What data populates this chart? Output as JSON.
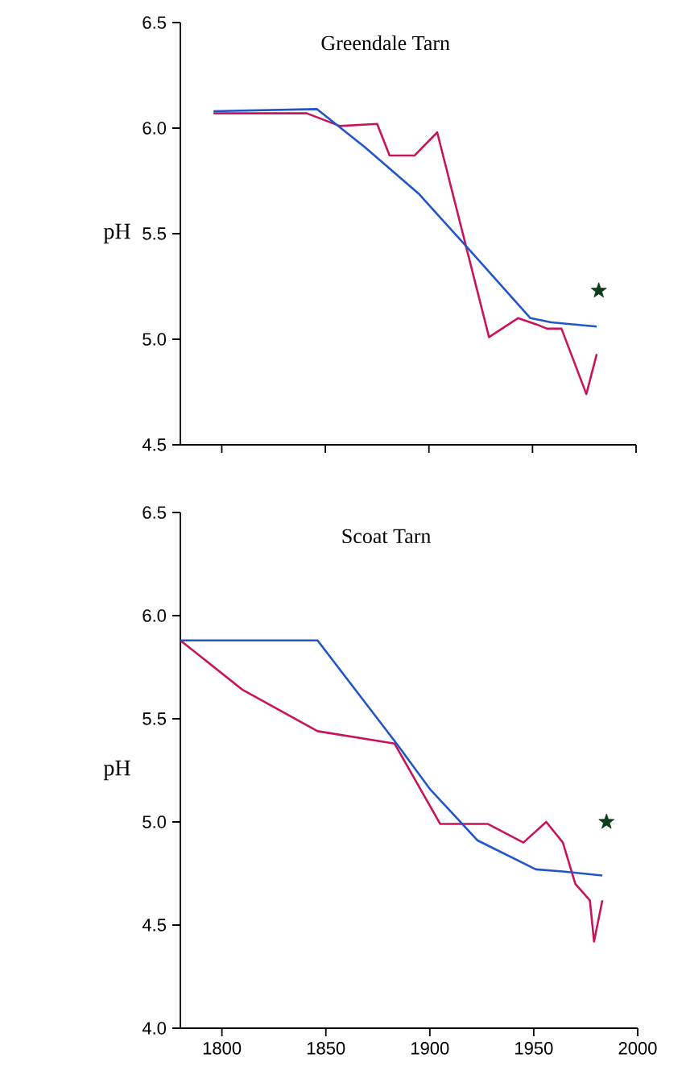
{
  "chart_data": [
    {
      "type": "line",
      "title": "Greendale Tarn",
      "ylabel": "pH",
      "xlim": [
        1780,
        2000
      ],
      "ylim": [
        4.5,
        6.5
      ],
      "xticks": [
        1800,
        1850,
        1900,
        1950,
        2000
      ],
      "yticks": [
        {
          "value": 4.5,
          "label": "4.5"
        },
        {
          "value": 5,
          "label": "5.0"
        },
        {
          "value": 5.5,
          "label": "5.5"
        },
        {
          "value": 6,
          "label": "6.0"
        },
        {
          "value": 6.5,
          "label": "6.5"
        }
      ],
      "tick_labels": "y",
      "series": [
        {
          "color": "#c8145a",
          "x": [
            1796,
            1841,
            1857,
            1875,
            1881,
            1893,
            1904,
            1929,
            1943,
            1952,
            1957,
            1964,
            1976,
            1981
          ],
          "values": [
            6.07,
            6.07,
            6.01,
            6.02,
            5.87,
            5.87,
            5.98,
            5.01,
            5.1,
            5.07,
            5.05,
            5.05,
            4.74,
            4.93
          ]
        },
        {
          "color": "#2255c8",
          "x": [
            1796,
            1846,
            1869,
            1895,
            1918,
            1949,
            1959,
            1981
          ],
          "values": [
            6.08,
            6.09,
            5.91,
            5.69,
            5.44,
            5.1,
            5.08,
            5.06
          ]
        },
        {
          "type": "scatter",
          "marker": "star",
          "color": "#0d3d1a",
          "x": [
            1982
          ],
          "values": [
            5.23
          ]
        }
      ]
    },
    {
      "type": "line",
      "title": "Scoat Tarn",
      "ylabel": "pH",
      "xlim": [
        1780,
        2000
      ],
      "ylim": [
        4.0,
        6.5
      ],
      "xticks": [
        1800,
        1850,
        1900,
        1950,
        2000
      ],
      "yticks": [
        {
          "value": 4,
          "label": "4.0"
        },
        {
          "value": 4.5,
          "label": "4.5"
        },
        {
          "value": 5,
          "label": "5.0"
        },
        {
          "value": 5.5,
          "label": "5.5"
        },
        {
          "value": 6,
          "label": "6.0"
        },
        {
          "value": 6.5,
          "label": "6.5"
        }
      ],
      "series": [
        {
          "color": "#c8145a",
          "x": [
            1780,
            1810,
            1846,
            1883,
            1905,
            1928,
            1945,
            1956,
            1964,
            1970,
            1977,
            1979,
            1983
          ],
          "values": [
            5.88,
            5.64,
            5.44,
            5.38,
            4.99,
            4.99,
            4.9,
            5.0,
            4.9,
            4.7,
            4.62,
            4.42,
            4.62
          ]
        },
        {
          "color": "#2255c8",
          "x": [
            1780,
            1846,
            1884,
            1900,
            1923,
            1951,
            1964,
            1983
          ],
          "values": [
            5.88,
            5.88,
            5.38,
            5.16,
            4.91,
            4.77,
            4.76,
            4.74
          ]
        },
        {
          "type": "scatter",
          "marker": "star",
          "color": "#0d3d1a",
          "x": [
            1985
          ],
          "values": [
            5.0
          ]
        }
      ]
    }
  ]
}
